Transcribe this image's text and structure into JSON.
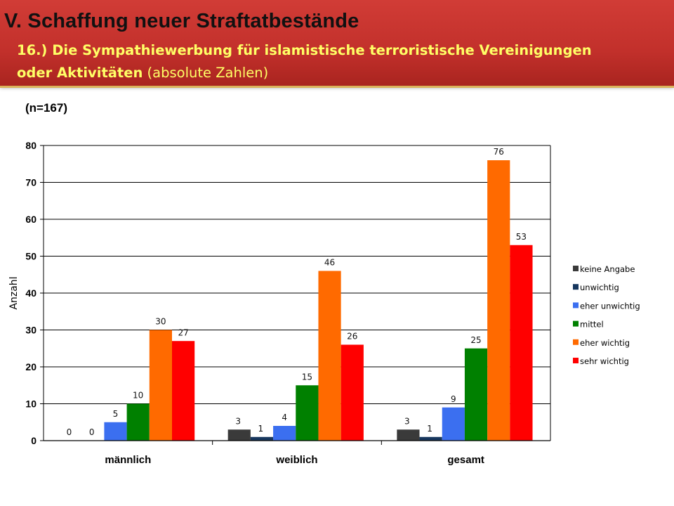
{
  "header": {
    "title": "V. Schaffung neuer Straftatbestände",
    "subtitle_bold_1": "16.) Die Sympathiewerbung für islamistische terroristische Vereinigungen",
    "subtitle_bold_2": "oder Aktivitäten",
    "subtitle_normal": " (absolute Zahlen)"
  },
  "sample_size": "(n=167)",
  "chart_data": {
    "type": "bar",
    "categories": [
      "männlich",
      "weiblich",
      "gesamt"
    ],
    "ylabel": "Anzahl",
    "xlabel": "",
    "ylim": [
      0,
      80
    ],
    "yticks": [
      0,
      10,
      20,
      30,
      40,
      50,
      60,
      70,
      80
    ],
    "grid": true,
    "legend_position": "right",
    "series": [
      {
        "name": "keine Angabe",
        "color": "#3a3a3a",
        "values": [
          0,
          3,
          3
        ],
        "labels": [
          "0",
          "3",
          "3"
        ]
      },
      {
        "name": "unwichtig",
        "color": "#17375e",
        "values": [
          0,
          1,
          1
        ],
        "labels": [
          "0",
          "1",
          "1"
        ]
      },
      {
        "name": "eher unwichtig",
        "color": "#3b6ff0",
        "values": [
          5,
          4,
          9
        ],
        "labels": [
          "5",
          "4",
          "9"
        ]
      },
      {
        "name": "mittel",
        "color": "#008000",
        "values": [
          10,
          15,
          25
        ],
        "labels": [
          "10",
          "15",
          "25"
        ]
      },
      {
        "name": "eher wichtig",
        "color": "#ff6a00",
        "values": [
          30,
          46,
          76
        ],
        "labels": [
          "30",
          "46",
          "76"
        ]
      },
      {
        "name": "sehr wichtig",
        "color": "#ff0000",
        "values": [
          27,
          26,
          53
        ],
        "labels": [
          "27",
          "26",
          "53"
        ]
      }
    ]
  }
}
